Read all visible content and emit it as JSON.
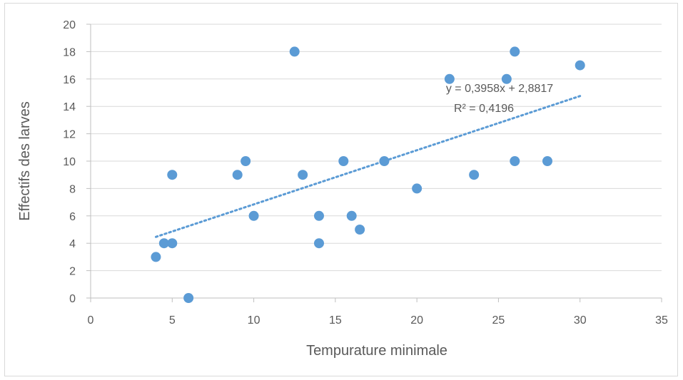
{
  "chart_data": {
    "type": "scatter",
    "title": "",
    "xlabel": "Tempurature minimale",
    "ylabel": "Effectifs des larves",
    "xlim": [
      0,
      35
    ],
    "ylim": [
      0,
      20
    ],
    "x_ticks": [
      "0",
      "5",
      "10",
      "15",
      "20",
      "25",
      "30",
      "35"
    ],
    "y_ticks": [
      "0",
      "2",
      "4",
      "6",
      "8",
      "10",
      "12",
      "14",
      "16",
      "18",
      "20"
    ],
    "grid": true,
    "legend": "none",
    "series": [
      {
        "points": [
          [
            4,
            3
          ],
          [
            4.5,
            4
          ],
          [
            5,
            4
          ],
          [
            5,
            9
          ],
          [
            6,
            0
          ],
          [
            9,
            9
          ],
          [
            9.5,
            10
          ],
          [
            10,
            6
          ],
          [
            12.5,
            18
          ],
          [
            13,
            9
          ],
          [
            14,
            6
          ],
          [
            14,
            4
          ],
          [
            15.5,
            10
          ],
          [
            16,
            6
          ],
          [
            16.5,
            5
          ],
          [
            18,
            10
          ],
          [
            20,
            8
          ],
          [
            22,
            16
          ],
          [
            23.5,
            9
          ],
          [
            25.5,
            16
          ],
          [
            26,
            18
          ],
          [
            26,
            10
          ],
          [
            28,
            10
          ],
          [
            30,
            17
          ]
        ],
        "color": "#5b9bd5"
      }
    ],
    "trendline": {
      "type": "linear",
      "slope": 0.3958,
      "intercept": 2.8817,
      "x_range": [
        4,
        30
      ],
      "equation": "y = 0,3958x + 2,8817",
      "r_squared": "R² = 0,4196",
      "color": "#5b9bd5"
    }
  }
}
